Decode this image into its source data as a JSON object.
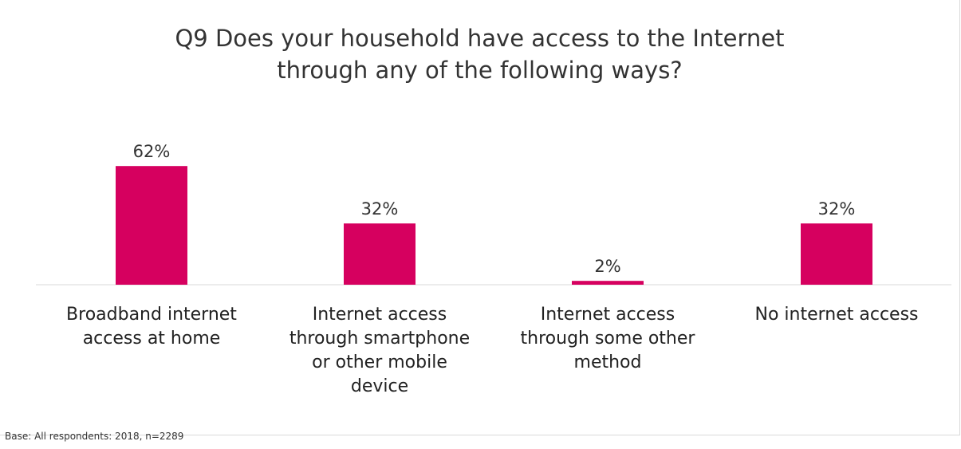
{
  "chart_data": {
    "type": "bar",
    "title_lines": [
      "Q9 Does your household have access to the Internet",
      "through any of the following ways?"
    ],
    "categories": [
      [
        "Broadband internet",
        "access at home"
      ],
      [
        "Internet access",
        "through smartphone",
        "or other mobile",
        "device"
      ],
      [
        "Internet access",
        "through some other",
        "method"
      ],
      [
        "No internet access"
      ]
    ],
    "values": [
      62,
      32,
      2,
      32
    ],
    "value_labels": [
      "62%",
      "32%",
      "2%",
      "32%"
    ],
    "bar_color": "#d6005f",
    "ylim": [
      0,
      70
    ],
    "grid": false,
    "legend": "none"
  },
  "footer": {
    "base_note": "Base: All respondents: 2018, n=2289"
  }
}
